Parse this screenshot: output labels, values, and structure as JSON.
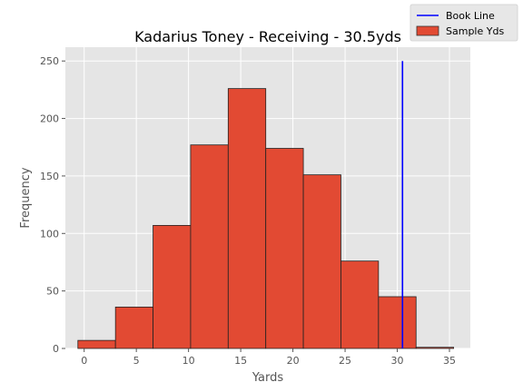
{
  "chart_data": {
    "type": "bar",
    "title": "Kadarius Toney - Receiving - 30.5yds",
    "xlabel": "Yards",
    "ylabel": "Frequency",
    "xlim": [
      -1.8,
      37.0
    ],
    "ylim": [
      0,
      262
    ],
    "xticks": [
      0,
      5,
      10,
      15,
      20,
      25,
      30,
      35
    ],
    "yticks": [
      0,
      50,
      100,
      150,
      200,
      250
    ],
    "grid": true,
    "legend_position": "top-right",
    "bins": [
      {
        "start": -0.6,
        "end": 3.0,
        "value": 7
      },
      {
        "start": 3.0,
        "end": 6.6,
        "value": 36
      },
      {
        "start": 6.6,
        "end": 10.2,
        "value": 107
      },
      {
        "start": 10.2,
        "end": 13.8,
        "value": 177
      },
      {
        "start": 13.8,
        "end": 17.4,
        "value": 226
      },
      {
        "start": 17.4,
        "end": 21.0,
        "value": 174
      },
      {
        "start": 21.0,
        "end": 24.6,
        "value": 151
      },
      {
        "start": 24.6,
        "end": 28.2,
        "value": 76
      },
      {
        "start": 28.2,
        "end": 31.8,
        "value": 45
      },
      {
        "start": 31.8,
        "end": 35.4,
        "value": 1
      }
    ],
    "series": [
      {
        "name": "Book Line",
        "type": "vline",
        "x": 30.5,
        "y_range": [
          0,
          250
        ],
        "color": "#0000ff"
      },
      {
        "name": "Sample Yds",
        "type": "histogram",
        "color": "#e24a33"
      }
    ]
  }
}
